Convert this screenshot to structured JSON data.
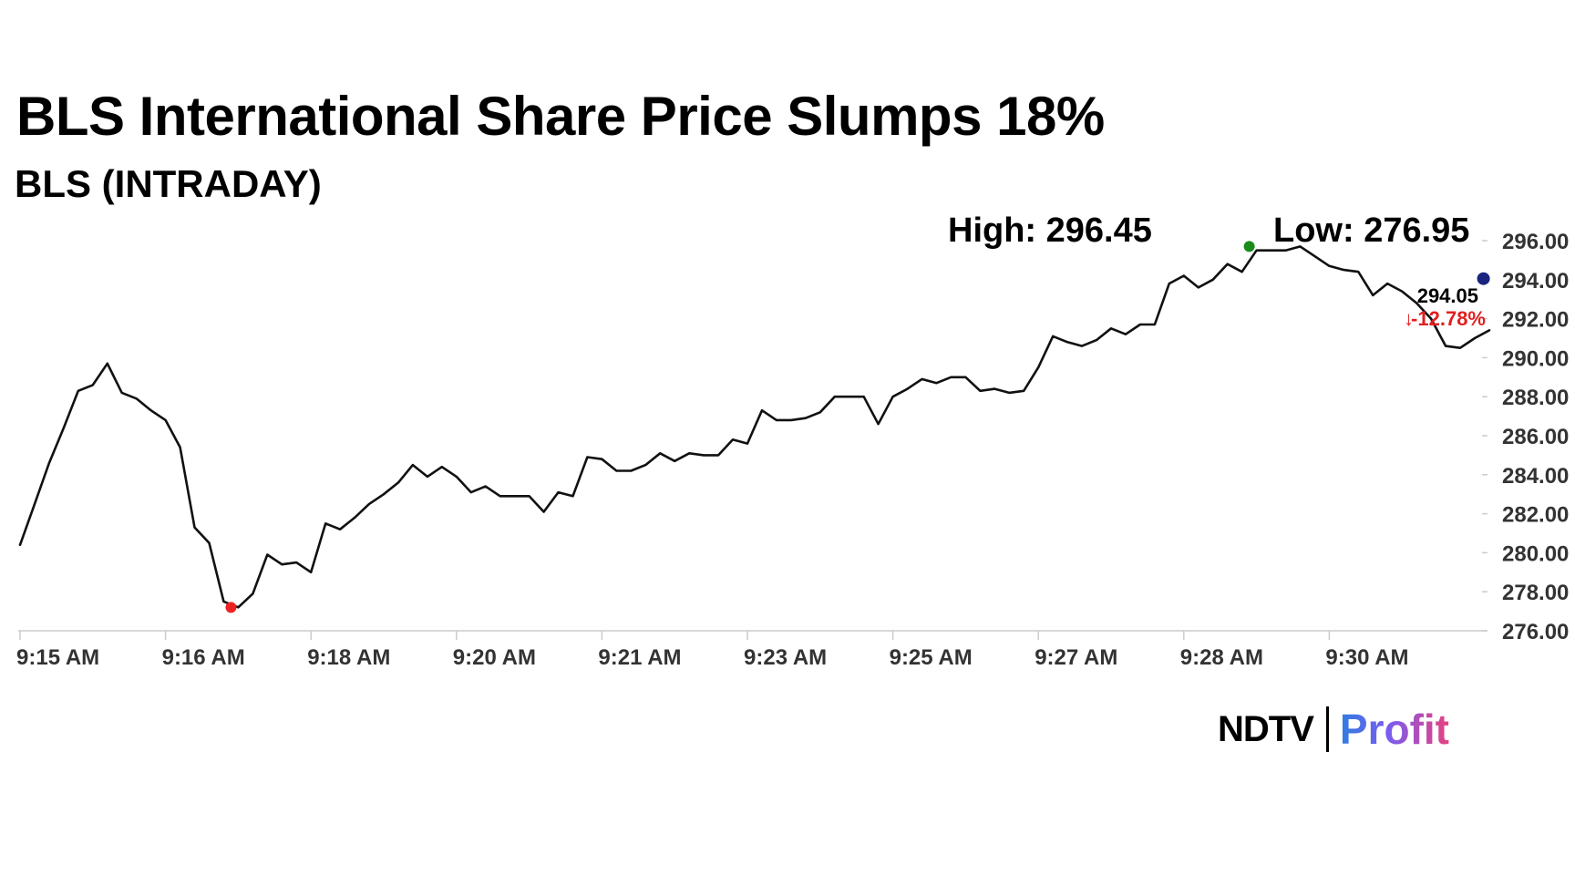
{
  "page": {
    "title": "BLS International Share Price Slumps 18%",
    "subtitle": "BLS (INTRADAY)"
  },
  "chart_data": {
    "type": "line",
    "series": [
      {
        "name": "BLS",
        "values": [
          280.4,
          282.5,
          284.6,
          286.4,
          288.3,
          288.6,
          289.7,
          288.2,
          287.9,
          287.3,
          286.8,
          285.4,
          281.3,
          280.5,
          277.5,
          277.2,
          277.9,
          279.9,
          279.4,
          279.5,
          279.0,
          281.5,
          281.2,
          281.8,
          282.5,
          283.0,
          283.6,
          284.5,
          283.9,
          284.4,
          283.9,
          283.1,
          283.4,
          282.9,
          282.9,
          282.9,
          282.1,
          283.1,
          282.9,
          284.9,
          284.8,
          284.2,
          284.2,
          284.5,
          285.1,
          284.7,
          285.1,
          285.0,
          285.0,
          285.8,
          285.6,
          287.3,
          286.8,
          286.8,
          286.9,
          287.2,
          288.0,
          288.0,
          288.0,
          286.6,
          288.0,
          288.4,
          288.9,
          288.7,
          289.0,
          289.0,
          288.3,
          288.4,
          288.2,
          288.3,
          289.5,
          291.1,
          290.8,
          290.6,
          290.9,
          291.5,
          291.2,
          291.7,
          291.7,
          293.8,
          294.2,
          293.6,
          294.0,
          294.8,
          294.4,
          295.5,
          295.5,
          295.5,
          295.7,
          295.2,
          294.7,
          294.5,
          294.4,
          293.2,
          293.8,
          293.4,
          292.8,
          292.0,
          290.6,
          290.5,
          291.0,
          291.4
        ]
      }
    ],
    "xlabel": "",
    "ylabel": "",
    "ylim": [
      276,
      296
    ],
    "y_ticks": [
      296,
      294,
      292,
      290,
      288,
      286,
      284,
      282,
      280,
      278,
      276
    ],
    "y_tick_labels": [
      "296.00",
      "294.00",
      "292.00",
      "290.00",
      "288.00",
      "286.00",
      "284.00",
      "282.00",
      "280.00",
      "278.00",
      "276.00"
    ],
    "x_ticks": [
      {
        "index": 0,
        "label": "9:15 AM"
      },
      {
        "index": 10,
        "label": "9:16 AM"
      },
      {
        "index": 20,
        "label": "9:18 AM"
      },
      {
        "index": 30,
        "label": "9:20 AM"
      },
      {
        "index": 40,
        "label": "9:21 AM"
      },
      {
        "index": 50,
        "label": "9:23 AM"
      },
      {
        "index": 60,
        "label": "9:25 AM"
      },
      {
        "index": 70,
        "label": "9:27 AM"
      },
      {
        "index": 80,
        "label": "9:28 AM"
      },
      {
        "index": 90,
        "label": "9:30 AM"
      }
    ],
    "x_max_index": 100,
    "high_label": "High: 296.45",
    "low_label": "Low: 276.95",
    "high_marker": {
      "index": 84.5,
      "value": 295.7,
      "color": "#1a8a1a"
    },
    "low_marker": {
      "index": 14.5,
      "value": 277.2,
      "color": "#ee2222"
    },
    "last_marker": {
      "index": 100.6,
      "value": 294.05,
      "color": "#1a237e"
    },
    "last_price": "294.05",
    "change_arrow": "↓",
    "change_pct": "-12.78%",
    "change_color": "#e02020",
    "line_color": "#111111"
  },
  "logo": {
    "ndtv": "NDTV",
    "profit": "Profit"
  }
}
